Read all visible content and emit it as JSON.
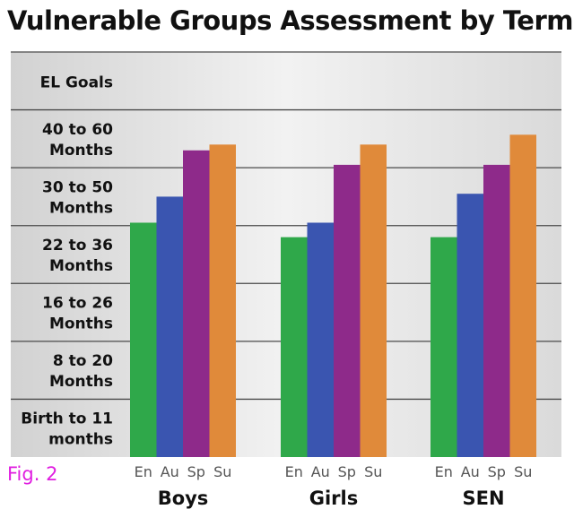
{
  "chart_data": {
    "type": "bar",
    "title": "Vulnerable Groups Assessment by Term",
    "caption": "Fig. 2",
    "top_band_label": "EL Goals",
    "y_levels": [
      {
        "line1": "Birth to 11",
        "line2": "months"
      },
      {
        "line1": "8 to 20",
        "line2": "Months"
      },
      {
        "line1": "16 to 26",
        "line2": "Months"
      },
      {
        "line1": "22 to 36",
        "line2": "Months"
      },
      {
        "line1": "30 to 50",
        "line2": "Months"
      },
      {
        "line1": "40 to 60",
        "line2": "Months"
      }
    ],
    "ylim": [
      0,
      7
    ],
    "grid": true,
    "categories": [
      "Boys",
      "Girls",
      "SEN"
    ],
    "series": [
      {
        "name": "En",
        "color": "#2fa84a",
        "values": [
          4.05,
          3.8,
          3.8
        ]
      },
      {
        "name": "Au",
        "color": "#3a55b0",
        "values": [
          4.5,
          4.05,
          4.55
        ]
      },
      {
        "name": "Sp",
        "color": "#8e2a8a",
        "values": [
          5.3,
          5.05,
          5.05
        ]
      },
      {
        "name": "Su",
        "color": "#e08a3a",
        "values": [
          5.4,
          5.4,
          5.57
        ]
      }
    ]
  }
}
